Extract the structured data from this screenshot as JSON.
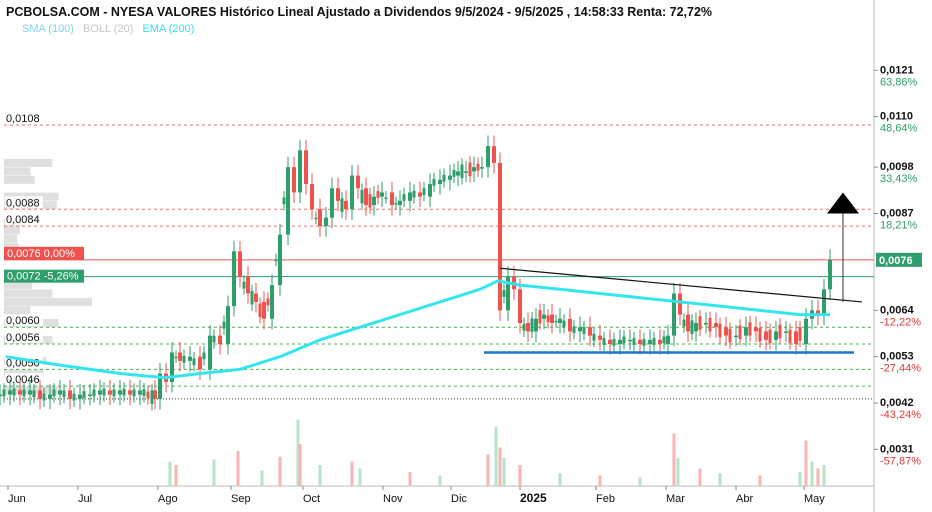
{
  "title": "PCBOLSA.COM - NYESA VALORES Histórico Lineal Ajustado a Dividendos 9/5/2024 - 9/5/2025 , 14:58:33 Renta: 72,72%",
  "legend": [
    {
      "label": "SMA (100)",
      "color": "#7fd3f0"
    },
    {
      "label": "BOLL (20)",
      "color": "#c8c8c8"
    },
    {
      "label": "EMA (200)",
      "color": "#33e0ea"
    }
  ],
  "colors": {
    "up": "#2e9e6a",
    "down": "#ef5350",
    "ema": "#33e6ee",
    "support": "#1976d2",
    "trendline": "#111111"
  },
  "chart_data": {
    "type": "candlestick",
    "x_ticks": [
      "Jun",
      "Jul",
      "Ago",
      "Sep",
      "Oct",
      "Nov",
      "Dic",
      "2025",
      "Feb",
      "Mar",
      "Abr",
      "May"
    ],
    "ylim": [
      0.0028,
      0.0127
    ],
    "right_axis": [
      {
        "price": "0,0121",
        "pct": "63,86%",
        "dir": "up"
      },
      {
        "price": "0,0110",
        "pct": "48,64%",
        "dir": "up"
      },
      {
        "price": "0,0098",
        "pct": "33,43%",
        "dir": "up"
      },
      {
        "price": "0,0087",
        "pct": "18,21%",
        "dir": "up"
      },
      {
        "price": "0,0064",
        "pct": "-12,22%",
        "dir": "down"
      },
      {
        "price": "0,0053",
        "pct": "-27,44%",
        "dir": "down"
      },
      {
        "price": "0,0042",
        "pct": "-43,24%",
        "dir": "down"
      },
      {
        "price": "0,0031",
        "pct": "-57,87%",
        "dir": "down"
      }
    ],
    "hlines": [
      {
        "value": 0.0108,
        "label": "0,0108",
        "color": "#e57373",
        "dash": true
      },
      {
        "value": 0.0088,
        "label": "0,0088",
        "color": "#e57373",
        "dash": true
      },
      {
        "value": 0.0084,
        "label": "0,0084",
        "color": "#e57373",
        "dash": true
      },
      {
        "value": 0.006,
        "label": "0,0060",
        "color": "#4caf50",
        "dash": true
      },
      {
        "value": 0.0056,
        "label": "0,0056",
        "color": "#4caf50",
        "dash": true
      },
      {
        "value": 0.005,
        "label": "0,0050",
        "color": "#4caf50",
        "dash": true
      },
      {
        "value": 0.0046,
        "label": "0,0046",
        "color": "#4caf50",
        "dash": true
      },
      {
        "value": 0.0043,
        "label": "",
        "color": "#333333",
        "dash": true
      }
    ],
    "current_price": {
      "value": 0.0076,
      "label": "0,0076",
      "tag": "0,0076  0,00%",
      "color": "#ef5350"
    },
    "ref_price": {
      "value": 0.0072,
      "tag": "0,0072  -5,26%",
      "color": "#2e9e6a"
    },
    "volume_profile": [
      {
        "price": 0.0099,
        "w": 0.55
      },
      {
        "price": 0.0097,
        "w": 0.3
      },
      {
        "price": 0.0095,
        "w": 0.35
      },
      {
        "price": 0.0091,
        "w": 0.62
      },
      {
        "price": 0.0089,
        "w": 0.6
      },
      {
        "price": 0.0085,
        "w": 0.22
      },
      {
        "price": 0.0083,
        "w": 0.18
      },
      {
        "price": 0.0081,
        "w": 0.15
      },
      {
        "price": 0.0079,
        "w": 0.17
      },
      {
        "price": 0.007,
        "w": 0.32
      },
      {
        "price": 0.0068,
        "w": 0.55
      },
      {
        "price": 0.0066,
        "w": 1.0
      },
      {
        "price": 0.0064,
        "w": 0.3
      },
      {
        "price": 0.0061,
        "w": 0.62
      },
      {
        "price": 0.0057,
        "w": 0.55
      },
      {
        "price": 0.0052,
        "w": 0.48
      },
      {
        "price": 0.0049,
        "w": 0.45
      },
      {
        "price": 0.0045,
        "w": 0.62
      }
    ],
    "series_close": [
      [
        0,
        0.0044
      ],
      [
        10,
        0.0045
      ],
      [
        20,
        0.0044
      ],
      [
        30,
        0.0045
      ],
      [
        40,
        0.0043
      ],
      [
        50,
        0.0044
      ],
      [
        60,
        0.0045
      ],
      [
        70,
        0.0043
      ],
      [
        80,
        0.0044
      ],
      [
        90,
        0.0044
      ],
      [
        100,
        0.0045
      ],
      [
        110,
        0.0044
      ],
      [
        120,
        0.0045
      ],
      [
        130,
        0.0044
      ],
      [
        140,
        0.0045
      ],
      [
        155,
        0.0043
      ],
      [
        160,
        0.0049
      ],
      [
        166,
        0.0047
      ],
      [
        172,
        0.0054
      ],
      [
        180,
        0.0052
      ],
      [
        190,
        0.0053
      ],
      [
        200,
        0.005
      ],
      [
        210,
        0.0058
      ],
      [
        220,
        0.0056
      ],
      [
        228,
        0.0065
      ],
      [
        234,
        0.0078
      ],
      [
        240,
        0.0072
      ],
      [
        248,
        0.0068
      ],
      [
        256,
        0.0066
      ],
      [
        264,
        0.0062
      ],
      [
        272,
        0.007
      ],
      [
        280,
        0.0082
      ],
      [
        288,
        0.0098
      ],
      [
        294,
        0.0092
      ],
      [
        300,
        0.0102
      ],
      [
        306,
        0.0094
      ],
      [
        312,
        0.0088
      ],
      [
        320,
        0.0084
      ],
      [
        326,
        0.0086
      ],
      [
        332,
        0.0093
      ],
      [
        338,
        0.009
      ],
      [
        346,
        0.0088
      ],
      [
        352,
        0.0096
      ],
      [
        358,
        0.0093
      ],
      [
        366,
        0.0089
      ],
      [
        374,
        0.0091
      ],
      [
        382,
        0.0092
      ],
      [
        392,
        0.0089
      ],
      [
        400,
        0.009
      ],
      [
        410,
        0.0092
      ],
      [
        420,
        0.0091
      ],
      [
        430,
        0.0094
      ],
      [
        440,
        0.0095
      ],
      [
        450,
        0.0096
      ],
      [
        458,
        0.0097
      ],
      [
        466,
        0.0097
      ],
      [
        474,
        0.0098
      ],
      [
        482,
        0.0098
      ],
      [
        488,
        0.0103
      ],
      [
        494,
        0.0099
      ],
      [
        500,
        0.0064
      ],
      [
        508,
        0.0072
      ],
      [
        514,
        0.0069
      ],
      [
        520,
        0.0061
      ],
      [
        528,
        0.0059
      ],
      [
        536,
        0.0062
      ],
      [
        544,
        0.0063
      ],
      [
        552,
        0.0061
      ],
      [
        560,
        0.0062
      ],
      [
        570,
        0.0059
      ],
      [
        580,
        0.006
      ],
      [
        590,
        0.0058
      ],
      [
        600,
        0.0057
      ],
      [
        610,
        0.0056
      ],
      [
        620,
        0.0057
      ],
      [
        630,
        0.0057
      ],
      [
        640,
        0.0056
      ],
      [
        650,
        0.0057
      ],
      [
        660,
        0.0056
      ],
      [
        668,
        0.0058
      ],
      [
        674,
        0.0068
      ],
      [
        680,
        0.0063
      ],
      [
        688,
        0.0059
      ],
      [
        696,
        0.0061
      ],
      [
        706,
        0.0061
      ],
      [
        716,
        0.006
      ],
      [
        726,
        0.0058
      ],
      [
        736,
        0.0058
      ],
      [
        746,
        0.006
      ],
      [
        756,
        0.0059
      ],
      [
        766,
        0.0057
      ],
      [
        776,
        0.0059
      ],
      [
        786,
        0.0059
      ],
      [
        796,
        0.0056
      ],
      [
        806,
        0.0062
      ],
      [
        812,
        0.0064
      ],
      [
        818,
        0.0063
      ],
      [
        824,
        0.0069
      ],
      [
        830,
        0.0076
      ]
    ],
    "ema_200": [
      [
        6,
        0.0053
      ],
      [
        60,
        0.0051
      ],
      [
        120,
        0.0049
      ],
      [
        165,
        0.0048
      ],
      [
        200,
        0.0049
      ],
      [
        240,
        0.005
      ],
      [
        280,
        0.0053
      ],
      [
        320,
        0.0057
      ],
      [
        360,
        0.006
      ],
      [
        400,
        0.0063
      ],
      [
        440,
        0.0066
      ],
      [
        480,
        0.0069
      ],
      [
        498,
        0.0071
      ],
      [
        520,
        0.007
      ],
      [
        560,
        0.0069
      ],
      [
        600,
        0.0068
      ],
      [
        640,
        0.0067
      ],
      [
        680,
        0.0066
      ],
      [
        720,
        0.0065
      ],
      [
        760,
        0.0064
      ],
      [
        800,
        0.0063
      ],
      [
        830,
        0.0063
      ]
    ],
    "trendline": {
      "x1": 500,
      "y1": 0.0074,
      "x2": 862,
      "y2": 0.0066
    },
    "support_line": {
      "x1": 484,
      "x2": 854,
      "y": 0.0054
    },
    "target_arrow": {
      "x": 843,
      "from": 0.0066,
      "to": 0.0087
    },
    "volume_bars": [
      [
        170,
        0.35
      ],
      [
        176,
        0.3
      ],
      [
        214,
        0.38
      ],
      [
        238,
        0.5
      ],
      [
        262,
        0.22
      ],
      [
        280,
        0.42
      ],
      [
        298,
        0.95
      ],
      [
        300,
        0.6
      ],
      [
        320,
        0.3
      ],
      [
        352,
        0.35
      ],
      [
        360,
        0.25
      ],
      [
        410,
        0.2
      ],
      [
        440,
        0.15
      ],
      [
        488,
        0.45
      ],
      [
        496,
        0.85
      ],
      [
        500,
        0.55
      ],
      [
        504,
        0.4
      ],
      [
        520,
        0.3
      ],
      [
        560,
        0.18
      ],
      [
        600,
        0.15
      ],
      [
        640,
        0.12
      ],
      [
        674,
        0.75
      ],
      [
        678,
        0.4
      ],
      [
        700,
        0.25
      ],
      [
        720,
        0.18
      ],
      [
        760,
        0.15
      ],
      [
        800,
        0.2
      ],
      [
        806,
        0.65
      ],
      [
        812,
        0.35
      ],
      [
        818,
        0.25
      ],
      [
        824,
        0.3
      ]
    ]
  }
}
